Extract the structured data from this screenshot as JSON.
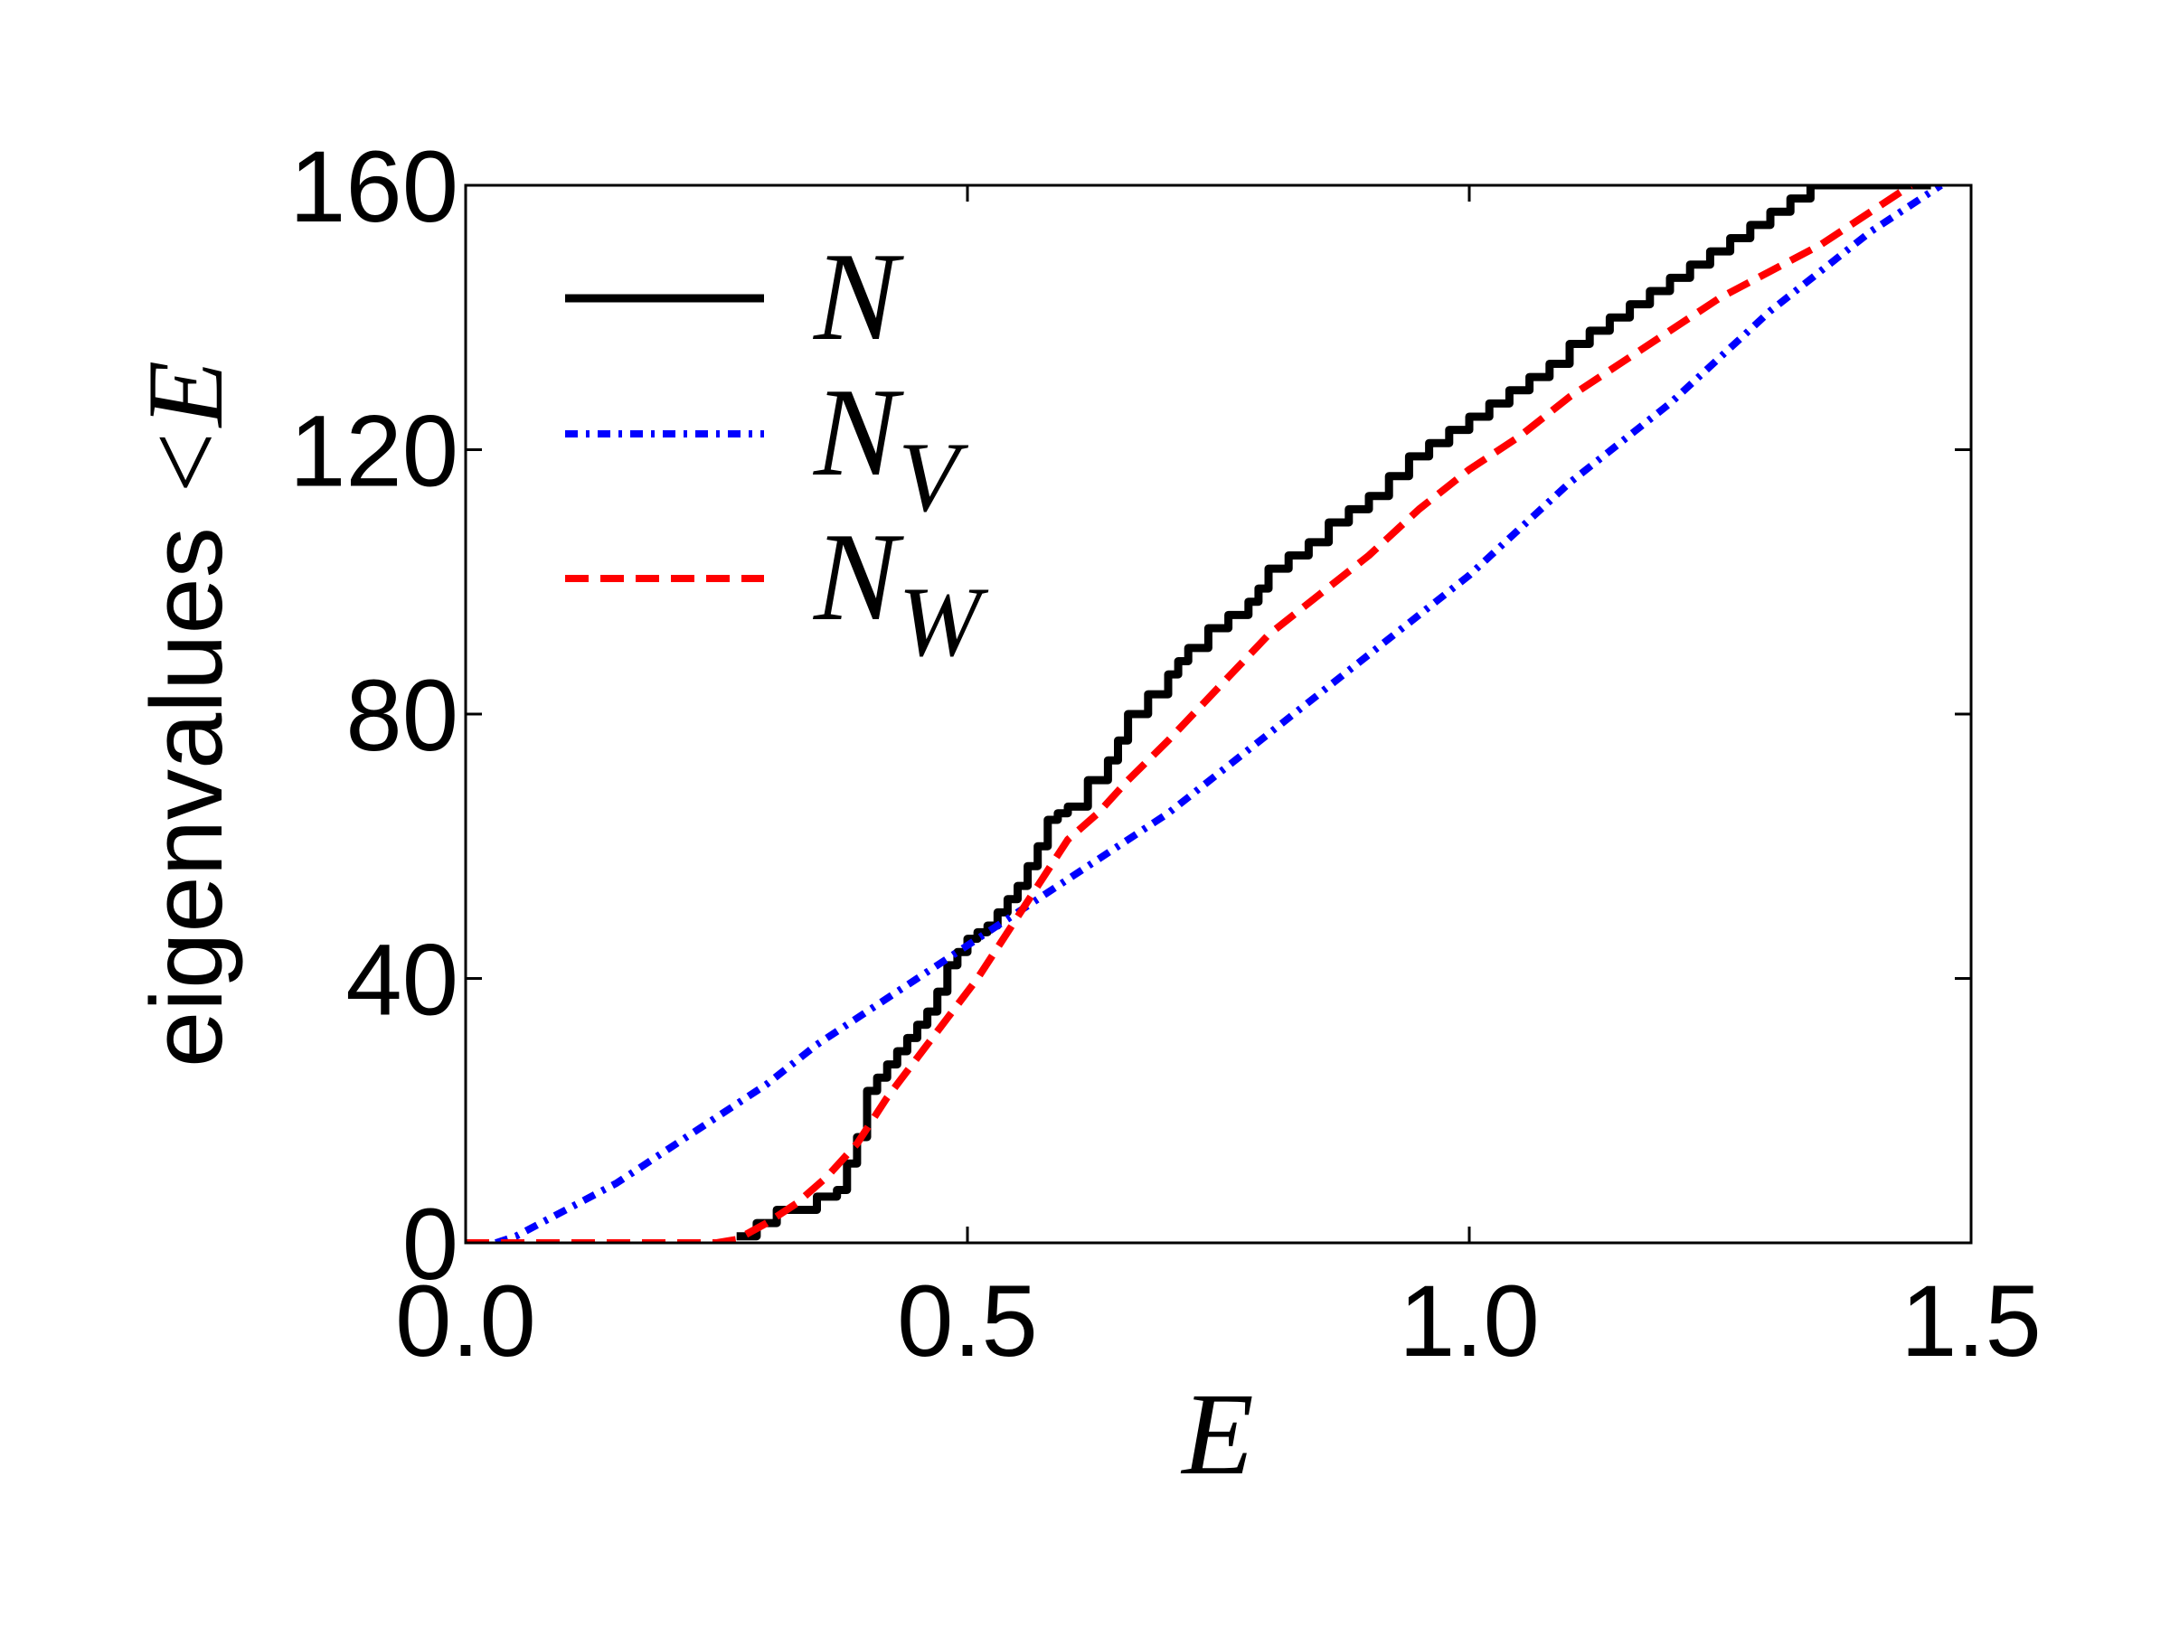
{
  "chart_data": {
    "type": "line",
    "title": "",
    "xlabel": "E",
    "ylabel_text": "eigenvalues",
    "ylabel_math": "<E",
    "xlim": [
      0.0,
      1.5
    ],
    "ylim": [
      0,
      160
    ],
    "xticks": [
      "0.0",
      "0.5",
      "1.0",
      "1.5"
    ],
    "yticks": [
      "0",
      "40",
      "80",
      "120",
      "160"
    ],
    "grid": false,
    "legend_position": "upper-left",
    "series": [
      {
        "name": "N",
        "subscript": "",
        "color": "#000000",
        "style": "solid",
        "step": true,
        "x": [
          0.27,
          0.29,
          0.31,
          0.33,
          0.35,
          0.37,
          0.38,
          0.39,
          0.4,
          0.41,
          0.42,
          0.43,
          0.44,
          0.45,
          0.46,
          0.47,
          0.48,
          0.49,
          0.5,
          0.51,
          0.52,
          0.53,
          0.54,
          0.55,
          0.56,
          0.57,
          0.58,
          0.59,
          0.6,
          0.62,
          0.64,
          0.65,
          0.66,
          0.68,
          0.7,
          0.71,
          0.72,
          0.74,
          0.76,
          0.78,
          0.79,
          0.8,
          0.82,
          0.84,
          0.86,
          0.88,
          0.9,
          0.92,
          0.94,
          0.96,
          0.98,
          1.0,
          1.02,
          1.04,
          1.06,
          1.08,
          1.1,
          1.12,
          1.14,
          1.16,
          1.18,
          1.2,
          1.22,
          1.24,
          1.26,
          1.28,
          1.3,
          1.32,
          1.34,
          1.36,
          1.38,
          1.4,
          1.42,
          1.44,
          1.46
        ],
        "y": [
          1,
          3,
          5,
          5,
          7,
          8,
          12,
          16,
          23,
          25,
          27,
          29,
          31,
          33,
          35,
          38,
          42,
          44,
          46,
          47,
          48,
          50,
          52,
          54,
          57,
          60,
          64,
          65,
          66,
          70,
          73,
          76,
          80,
          83,
          86,
          88,
          90,
          93,
          95,
          97,
          99,
          102,
          104,
          106,
          109,
          111,
          113,
          116,
          119,
          121,
          123,
          125,
          127,
          129,
          131,
          133,
          136,
          138,
          140,
          142,
          144,
          146,
          148,
          150,
          152,
          154,
          156,
          158,
          160,
          160,
          160,
          160,
          160,
          160,
          160
        ]
      },
      {
        "name": "N",
        "subscript": "V",
        "color": "#0000ff",
        "style": "dashdot",
        "step": false,
        "x": [
          0.03,
          0.05,
          0.1,
          0.15,
          0.2,
          0.25,
          0.3,
          0.35,
          0.4,
          0.45,
          0.5,
          0.55,
          0.6,
          0.65,
          0.7,
          0.75,
          0.8,
          0.85,
          0.9,
          0.95,
          1.0,
          1.05,
          1.1,
          1.15,
          1.2,
          1.25,
          1.3,
          1.35,
          1.4,
          1.45,
          1.47
        ],
        "y": [
          0,
          1,
          5,
          9,
          14,
          19,
          24,
          30,
          35,
          40,
          45,
          50,
          55,
          60,
          65,
          71,
          77,
          83,
          89,
          95,
          101,
          108,
          115,
          121,
          127,
          134,
          141,
          147,
          153,
          158,
          160
        ]
      },
      {
        "name": "N",
        "subscript": "W",
        "color": "#ff0000",
        "style": "dashed",
        "step": false,
        "x": [
          0.0,
          0.05,
          0.1,
          0.15,
          0.2,
          0.25,
          0.27,
          0.3,
          0.33,
          0.36,
          0.39,
          0.42,
          0.45,
          0.48,
          0.51,
          0.54,
          0.57,
          0.6,
          0.63,
          0.66,
          0.7,
          0.75,
          0.8,
          0.85,
          0.9,
          0.95,
          1.0,
          1.05,
          1.1,
          1.15,
          1.2,
          1.25,
          1.3,
          1.35,
          1.4,
          1.44
        ],
        "y": [
          0,
          0,
          0,
          0,
          0,
          0,
          0.5,
          3,
          6,
          10,
          15,
          22,
          28,
          34,
          40,
          47,
          54,
          61,
          65,
          70,
          76,
          84,
          92,
          98,
          104,
          111,
          117,
          122,
          128,
          133,
          138,
          143,
          147,
          151,
          156,
          160
        ]
      }
    ]
  }
}
